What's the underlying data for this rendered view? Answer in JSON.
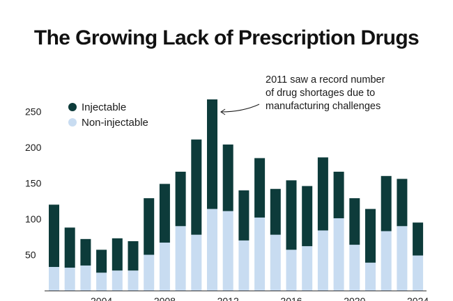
{
  "chart_data": {
    "type": "bar",
    "stacked": true,
    "title": "The Growing Lack of Prescription Drugs",
    "years": [
      2001,
      2002,
      2003,
      2004,
      2005,
      2006,
      2007,
      2008,
      2009,
      2010,
      2011,
      2012,
      2013,
      2014,
      2015,
      2016,
      2017,
      2018,
      2019,
      2020,
      2021,
      2022,
      2023,
      2024
    ],
    "series": [
      {
        "name": "Non-injectable",
        "color": "#c8dcf1",
        "values": [
          33,
          32,
          35,
          25,
          28,
          28,
          50,
          67,
          90,
          78,
          114,
          111,
          70,
          102,
          78,
          57,
          62,
          84,
          101,
          64,
          39,
          83,
          90,
          49
        ]
      },
      {
        "name": "Injectable",
        "color": "#0d3b3a",
        "values": [
          87,
          56,
          37,
          32,
          45,
          41,
          79,
          82,
          76,
          133,
          153,
          93,
          70,
          83,
          64,
          97,
          84,
          102,
          65,
          65,
          75,
          77,
          66,
          46
        ]
      }
    ],
    "yticks": [
      50,
      100,
      150,
      200,
      250
    ],
    "xticks": [
      "2004",
      "2008",
      "2012",
      "2016",
      "2020",
      "2024"
    ],
    "xtick_years": [
      2004,
      2008,
      2012,
      2016,
      2020,
      2024
    ],
    "ylim": [
      0,
      270
    ],
    "annotation": {
      "year": 2011,
      "lines": [
        "2011 saw a record number",
        "of drug shortages due to",
        "manufacturing challenges"
      ]
    }
  }
}
